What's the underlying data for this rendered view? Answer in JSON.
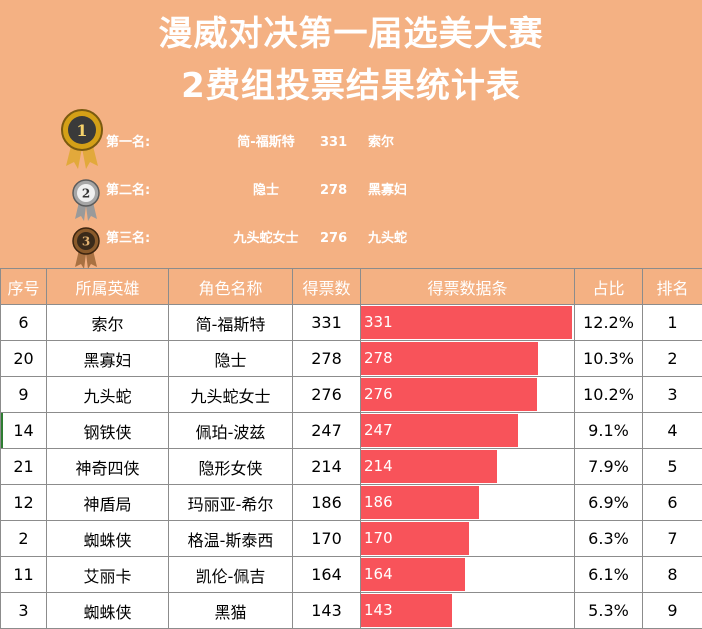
{
  "title": {
    "line1": "漫威对决第一届选美大赛",
    "line2": "2费组投票结果统计表"
  },
  "podium": [
    {
      "place": "第一名:",
      "name": "简-福斯特",
      "votes": "331",
      "hero": "索尔",
      "medal_color": "#d4a017",
      "medal_number": "1"
    },
    {
      "place": "第二名:",
      "name": "隐士",
      "votes": "278",
      "hero": "黑寡妇",
      "medal_color": "#a6a6a6",
      "medal_number": "2"
    },
    {
      "place": "第三名:",
      "name": "九头蛇女士",
      "votes": "276",
      "hero": "九头蛇",
      "medal_color": "#8a5a2b",
      "medal_number": "3"
    }
  ],
  "table": {
    "headers": [
      "序号",
      "所属英雄",
      "角色名称",
      "得票数",
      "得票数据条",
      "占比",
      "排名"
    ],
    "max_votes": 331,
    "bar_color": "#f8535a",
    "rows": [
      {
        "id": "6",
        "hero": "索尔",
        "role": "简-福斯特",
        "votes": "331",
        "bar_value": 331,
        "bar_label": "331",
        "pct": "12.2%",
        "rank": "1"
      },
      {
        "id": "20",
        "hero": "黑寡妇",
        "role": "隐士",
        "votes": "278",
        "bar_value": 278,
        "bar_label": "278",
        "pct": "10.3%",
        "rank": "2"
      },
      {
        "id": "9",
        "hero": "九头蛇",
        "role": "九头蛇女士",
        "votes": "276",
        "bar_value": 276,
        "bar_label": "276",
        "pct": "10.2%",
        "rank": "3"
      },
      {
        "id": "14",
        "hero": "钢铁侠",
        "role": "佩珀-波兹",
        "votes": "247",
        "bar_value": 247,
        "bar_label": "247",
        "pct": "9.1%",
        "rank": "4"
      },
      {
        "id": "21",
        "hero": "神奇四侠",
        "role": "隐形女侠",
        "votes": "214",
        "bar_value": 214,
        "bar_label": "214",
        "pct": "7.9%",
        "rank": "5"
      },
      {
        "id": "12",
        "hero": "神盾局",
        "role": "玛丽亚-希尔",
        "votes": "186",
        "bar_value": 186,
        "bar_label": "186",
        "pct": "6.9%",
        "rank": "6"
      },
      {
        "id": "2",
        "hero": "蜘蛛侠",
        "role": "格温-斯泰西",
        "votes": "170",
        "bar_value": 170,
        "bar_label": "170",
        "pct": "6.3%",
        "rank": "7"
      },
      {
        "id": "11",
        "hero": "艾丽卡",
        "role": "凯伦-佩吉",
        "votes": "164",
        "bar_value": 164,
        "bar_label": "164",
        "pct": "6.1%",
        "rank": "8"
      },
      {
        "id": "3",
        "hero": "蜘蛛侠",
        "role": "黑猫",
        "votes": "143",
        "bar_value": 143,
        "bar_label": "143",
        "pct": "5.3%",
        "rank": "9"
      }
    ]
  }
}
